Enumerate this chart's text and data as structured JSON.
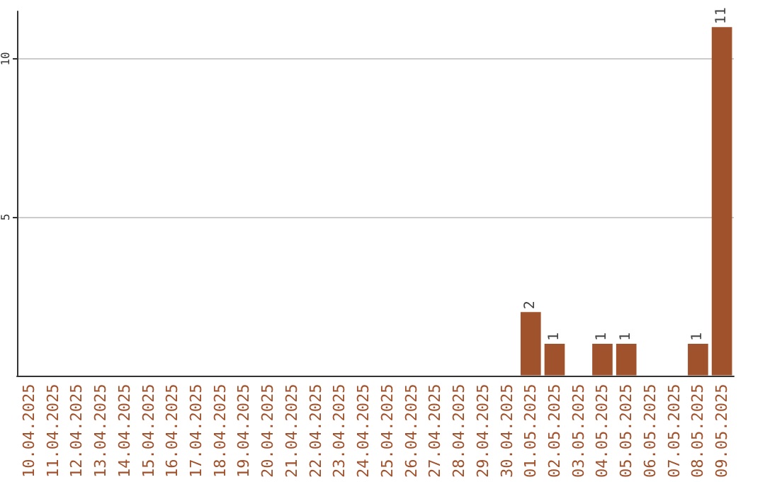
{
  "chart_data": {
    "type": "bar",
    "categories": [
      "10.04.2025",
      "11.04.2025",
      "12.04.2025",
      "13.04.2025",
      "14.04.2025",
      "15.04.2025",
      "16.04.2025",
      "17.04.2025",
      "18.04.2025",
      "19.04.2025",
      "20.04.2025",
      "21.04.2025",
      "22.04.2025",
      "23.04.2025",
      "24.04.2025",
      "25.04.2025",
      "26.04.2025",
      "27.04.2025",
      "28.04.2025",
      "29.04.2025",
      "30.04.2025",
      "01.05.2025",
      "02.05.2025",
      "03.05.2025",
      "04.05.2025",
      "05.05.2025",
      "06.05.2025",
      "07.05.2025",
      "08.05.2025",
      "09.05.2025"
    ],
    "values": [
      0,
      0,
      0,
      0,
      0,
      0,
      0,
      0,
      0,
      0,
      0,
      0,
      0,
      0,
      0,
      0,
      0,
      0,
      0,
      0,
      0,
      2,
      1,
      0,
      1,
      1,
      0,
      0,
      1,
      11
    ],
    "value_labels": [
      null,
      null,
      null,
      null,
      null,
      null,
      null,
      null,
      null,
      null,
      null,
      null,
      null,
      null,
      null,
      null,
      null,
      null,
      null,
      null,
      null,
      "2",
      "1",
      null,
      "1",
      "1",
      null,
      null,
      "1",
      "11"
    ],
    "color": "#a0522d",
    "ylim": [
      0,
      11.5
    ],
    "yticks": [
      5,
      10
    ],
    "grid": "y"
  }
}
